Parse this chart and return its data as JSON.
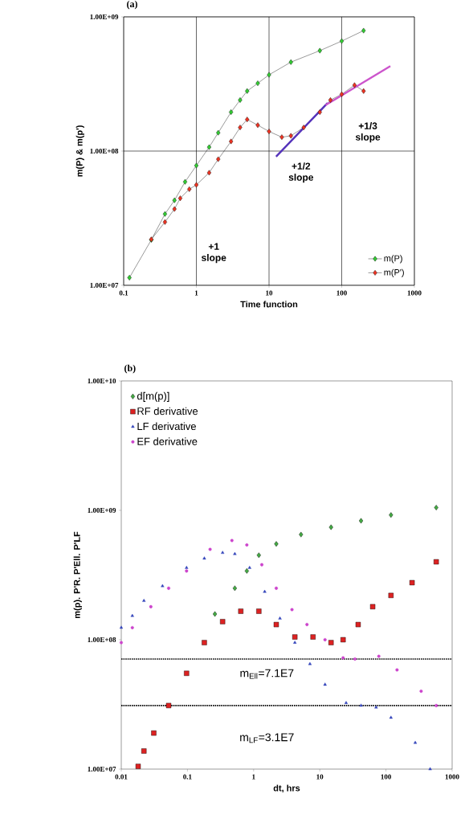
{
  "chart_data": [
    {
      "type": "line",
      "title": "(a)",
      "xlabel": "Time function",
      "ylabel": "m(P) & m(p')",
      "log": "xy",
      "grid": true,
      "legend": "bottom right",
      "marker": "diamond",
      "xlim": [
        0.1,
        1000
      ],
      "ylim": [
        10000000,
        1000000000
      ],
      "xticks": [
        0.1,
        1,
        10,
        100,
        1000
      ],
      "yticks": [
        {
          "value": 10000000,
          "label": "1.00E+07"
        },
        {
          "value": 100000000,
          "label": "1.00E+08"
        },
        {
          "value": 1000000000,
          "label": "1.00E+09"
        }
      ],
      "annotations": [
        "+1 slope",
        "+1/2 slope",
        "+1/3 slope"
      ],
      "series": [
        {
          "name": "m(P)",
          "color": "#33cc33",
          "x": [
            0.12,
            0.24,
            0.37,
            0.5,
            0.7,
            1,
            1.5,
            2,
            3,
            4,
            5,
            7,
            10,
            20,
            50,
            100,
            200
          ],
          "values": [
            11400000,
            21800000,
            34000000,
            43000000,
            59000000,
            78000000,
            107000000,
            137000000,
            195000000,
            240000000,
            280000000,
            320000000,
            370000000,
            460000000,
            560000000,
            660000000,
            790000000
          ]
        },
        {
          "name": "m(P')",
          "color": "#ee3322",
          "x": [
            0.24,
            0.37,
            0.5,
            0.6,
            0.8,
            1,
            1.5,
            2,
            3,
            4,
            5,
            7,
            10,
            15,
            20,
            30,
            50,
            70,
            100,
            150,
            200
          ],
          "values": [
            22000000,
            29600000,
            37000000,
            44500000,
            52000000,
            56000000,
            69000000,
            87000000,
            118000000,
            150000000,
            172000000,
            156000000,
            140000000,
            127000000,
            130000000,
            150000000,
            195000000,
            240000000,
            265000000,
            310000000,
            280000000
          ]
        },
        {
          "type": "line",
          "marker": "none",
          "color": "#5533bb",
          "x": [
            12.5,
            64
          ],
          "values": [
            91000000,
            228000000
          ]
        },
        {
          "type": "line",
          "marker": "none",
          "color": "#cc55cc",
          "x": [
            60,
            467
          ],
          "values": [
            220000000,
            430000000
          ]
        }
      ]
    },
    {
      "type": "scatter",
      "title": "(b)",
      "xlabel": "dt, hrs",
      "ylabel": "m(p). P'R. P'Ell. P'LF",
      "log": "xy",
      "grid": false,
      "legend": "top left",
      "xlim": [
        0.01,
        1000
      ],
      "ylim": [
        10000000,
        10000000000
      ],
      "xticks": [
        0.01,
        0.1,
        1,
        10,
        100,
        1000
      ],
      "yticks": [
        {
          "value": 10000000,
          "label": "1.00E+07"
        },
        {
          "value": 100000000,
          "label": "1.00E+08"
        },
        {
          "value": 1000000000,
          "label": "1.00E+09"
        },
        {
          "value": 10000000000,
          "label": "1.00E+10"
        }
      ],
      "ref_lines": [
        {
          "axis": "y",
          "value": 71000000,
          "color": "#000000",
          "line_style": "dotted"
        },
        {
          "axis": "y",
          "value": 31000000,
          "color": "#000000",
          "line_style": "dotted"
        }
      ],
      "annotations": [
        "m$_{Ell}$=7.1E7",
        "m$_{LF}$=3.1E7"
      ],
      "series": [
        {
          "name": "d[m(p)]",
          "marker": "diamond",
          "color": "#44aa44",
          "x": [
            0.26,
            0.52,
            0.79,
            1.2,
            2.2,
            5.2,
            14.8,
            42,
            119,
            575
          ],
          "values": [
            158000000,
            250000000,
            340000000,
            450000000,
            550000000,
            650000000,
            740000000,
            830000000,
            920000000,
            1050000000
          ]
        },
        {
          "name": "RF derivative",
          "marker": "square",
          "color": "#dd2222",
          "x": [
            0.018,
            0.022,
            0.031,
            0.052,
            0.097,
            0.18,
            0.34,
            0.64,
            1.2,
            2.2,
            4.2,
            7.9,
            14.8,
            22.5,
            38,
            63,
            119,
            248,
            575
          ],
          "values": [
            10500000,
            13800000,
            19000000,
            31000000,
            55000000,
            95000000,
            138000000,
            166000000,
            166000000,
            131000000,
            105000000,
            105000000,
            95000000,
            100000000,
            131000000,
            180000000,
            220000000,
            276000000,
            400000000
          ]
        },
        {
          "name": "LF derivative",
          "marker": "triangle",
          "color": "#3344bb",
          "x": [
            0.01,
            0.0147,
            0.022,
            0.042,
            0.097,
            0.18,
            0.34,
            0.52,
            0.87,
            1.47,
            2.5,
            4.2,
            7.1,
            12,
            25,
            42,
            71,
            119,
            277,
            465
          ],
          "values": [
            124000000,
            153000000,
            200000000,
            260000000,
            360000000,
            425000000,
            470000000,
            460000000,
            360000000,
            235000000,
            146000000,
            95000000,
            65000000,
            45000000,
            32500000,
            31000000,
            30000000,
            25000000,
            16000000,
            10000000
          ]
        },
        {
          "name": "EF derivative",
          "marker": "circle",
          "color": "#cc44cc",
          "x": [
            0.01,
            0.0147,
            0.028,
            0.052,
            0.097,
            0.22,
            0.47,
            0.79,
            1.33,
            2.2,
            3.8,
            6.4,
            12,
            22.5,
            34,
            78,
            147,
            340,
            575
          ],
          "values": [
            95000000,
            124000000,
            180000000,
            250000000,
            340000000,
            500000000,
            585000000,
            540000000,
            380000000,
            250000000,
            171000000,
            131000000,
            100000000,
            72500000,
            71000000,
            74500000,
            58500000,
            40000000,
            31000000
          ]
        }
      ]
    }
  ]
}
